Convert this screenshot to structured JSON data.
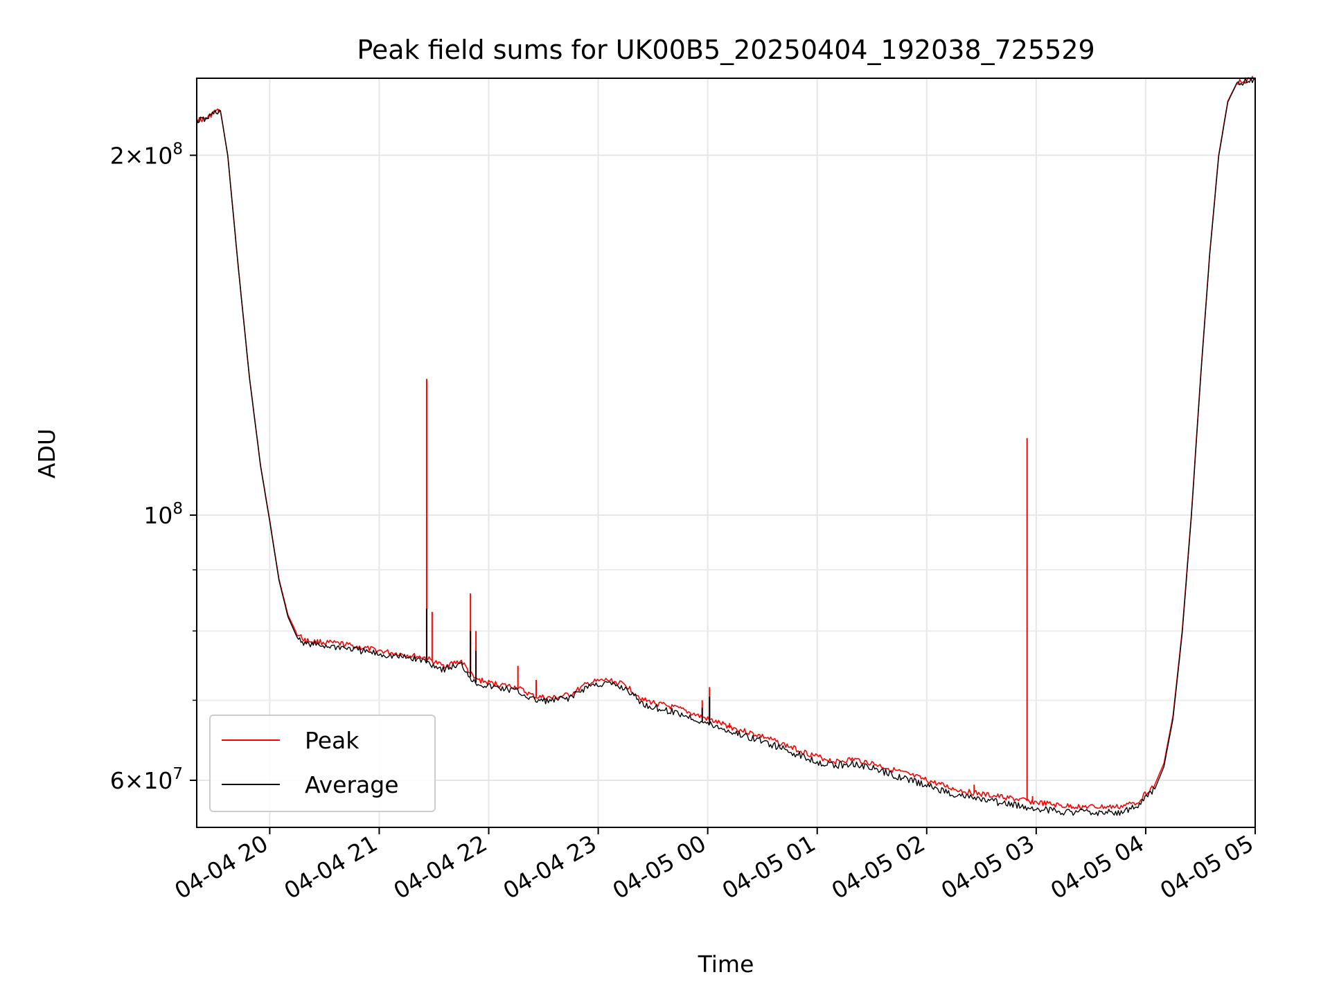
{
  "chart_data": {
    "type": "line",
    "title": "Peak field sums for UK00B5_20250404_192038_725529",
    "xlabel": "Time",
    "ylabel": "ADU",
    "x_unit": "hours",
    "xlim": [
      "2025-04-04 19:20",
      "2025-04-05 05:00"
    ],
    "ylim": [
      54800000,
      232000000
    ],
    "yscale": "log",
    "grid": true,
    "x_ticks": [
      {
        "value": "2025-04-04 20:00",
        "label": "04-04 20"
      },
      {
        "value": "2025-04-04 21:00",
        "label": "04-04 21"
      },
      {
        "value": "2025-04-04 22:00",
        "label": "04-04 22"
      },
      {
        "value": "2025-04-04 23:00",
        "label": "04-04 23"
      },
      {
        "value": "2025-04-05 00:00",
        "label": "04-05 00"
      },
      {
        "value": "2025-04-05 01:00",
        "label": "04-05 01"
      },
      {
        "value": "2025-04-05 02:00",
        "label": "04-05 02"
      },
      {
        "value": "2025-04-05 03:00",
        "label": "04-05 03"
      },
      {
        "value": "2025-04-05 04:00",
        "label": "04-05 04"
      },
      {
        "value": "2025-04-05 05:00",
        "label": "04-05 05"
      }
    ],
    "y_major_ticks": [
      {
        "value": 60000000,
        "mant": "6",
        "exp": "7"
      },
      {
        "value": 100000000,
        "mant": "",
        "exp": "8"
      },
      {
        "value": 200000000,
        "mant": "2",
        "exp": "8"
      }
    ],
    "y_minor_ticks": [
      70000000,
      80000000,
      90000000
    ],
    "legend": {
      "placement": "lower-left",
      "entries": [
        "Peak",
        "Average"
      ]
    },
    "series": [
      {
        "name": "Peak",
        "color": "#ff0000",
        "points": [
          [
            "2025-04-04 19:20",
            214000000
          ],
          [
            "2025-04-04 19:25",
            214500000
          ],
          [
            "2025-04-04 19:30",
            217500000
          ],
          [
            "2025-04-04 19:33",
            218000000
          ],
          [
            "2025-04-04 19:37",
            200000000
          ],
          [
            "2025-04-04 19:43",
            160000000
          ],
          [
            "2025-04-04 19:49",
            130000000
          ],
          [
            "2025-04-04 19:55",
            110000000
          ],
          [
            "2025-04-04 20:00",
            99000000
          ],
          [
            "2025-04-04 20:05",
            88500000
          ],
          [
            "2025-04-04 20:10",
            82500000
          ],
          [
            "2025-04-04 20:15",
            79500000
          ],
          [
            "2025-04-04 20:20",
            78500000
          ],
          [
            "2025-04-04 20:40",
            78000000
          ],
          [
            "2025-04-04 21:00",
            77000000
          ],
          [
            "2025-04-04 21:20",
            76200000
          ],
          [
            "2025-04-04 21:25",
            76000000
          ],
          [
            "2025-04-04 21:35",
            74800000
          ],
          [
            "2025-04-04 21:45",
            75500000
          ],
          [
            "2025-04-04 21:52",
            73000000
          ],
          [
            "2025-04-04 22:00",
            72400000
          ],
          [
            "2025-04-04 22:15",
            71800000
          ],
          [
            "2025-04-04 22:25",
            70500000
          ],
          [
            "2025-04-04 22:35",
            70300000
          ],
          [
            "2025-04-04 22:45",
            70800000
          ],
          [
            "2025-04-04 22:55",
            72400000
          ],
          [
            "2025-04-04 23:05",
            72800000
          ],
          [
            "2025-04-04 23:15",
            72100000
          ],
          [
            "2025-04-04 23:25",
            70000000
          ],
          [
            "2025-04-04 23:45",
            68800000
          ],
          [
            "2025-04-05 00:00",
            67500000
          ],
          [
            "2025-04-05 00:15",
            66300000
          ],
          [
            "2025-04-05 00:30",
            65300000
          ],
          [
            "2025-04-05 00:45",
            64000000
          ],
          [
            "2025-04-05 01:00",
            62800000
          ],
          [
            "2025-04-05 01:10",
            62200000
          ],
          [
            "2025-04-05 01:20",
            62500000
          ],
          [
            "2025-04-05 01:30",
            62000000
          ],
          [
            "2025-04-05 01:45",
            61000000
          ],
          [
            "2025-04-05 02:00",
            60000000
          ],
          [
            "2025-04-05 02:15",
            59000000
          ],
          [
            "2025-04-05 02:30",
            58400000
          ],
          [
            "2025-04-05 02:45",
            58000000
          ],
          [
            "2025-04-05 03:00",
            57500000
          ],
          [
            "2025-04-05 03:15",
            57100000
          ],
          [
            "2025-04-05 03:30",
            57000000
          ],
          [
            "2025-04-05 03:45",
            57000000
          ],
          [
            "2025-04-05 03:55",
            57500000
          ],
          [
            "2025-04-05 04:05",
            59500000
          ],
          [
            "2025-04-05 04:10",
            62000000
          ],
          [
            "2025-04-05 04:15",
            68000000
          ],
          [
            "2025-04-05 04:20",
            80000000
          ],
          [
            "2025-04-05 04:25",
            100000000
          ],
          [
            "2025-04-05 04:30",
            130000000
          ],
          [
            "2025-04-05 04:35",
            165000000
          ],
          [
            "2025-04-05 04:40",
            200000000
          ],
          [
            "2025-04-05 04:45",
            222000000
          ],
          [
            "2025-04-05 04:50",
            230000000
          ],
          [
            "2025-04-05 05:00",
            232000000
          ]
        ],
        "spikes": [
          [
            "2025-04-04 21:26",
            130000000
          ],
          [
            "2025-04-04 21:29",
            83000000
          ],
          [
            "2025-04-04 21:50",
            86000000
          ],
          [
            "2025-04-04 21:53",
            80000000
          ],
          [
            "2025-04-04 22:16",
            74800000
          ],
          [
            "2025-04-04 22:26",
            72800000
          ],
          [
            "2025-04-04 23:57",
            70000000
          ],
          [
            "2025-04-05 00:01",
            71800000
          ],
          [
            "2025-04-05 00:12",
            67000000
          ],
          [
            "2025-04-05 02:26",
            59500000
          ],
          [
            "2025-04-05 02:55",
            116000000
          ],
          [
            "2025-04-05 02:58",
            58200000
          ]
        ]
      },
      {
        "name": "Average",
        "color": "#000000",
        "points": [
          [
            "2025-04-04 19:20",
            213800000
          ],
          [
            "2025-04-04 19:25",
            214300000
          ],
          [
            "2025-04-04 19:30",
            217300000
          ],
          [
            "2025-04-04 19:33",
            217800000
          ],
          [
            "2025-04-04 19:37",
            199800000
          ],
          [
            "2025-04-04 19:43",
            159800000
          ],
          [
            "2025-04-04 19:49",
            129800000
          ],
          [
            "2025-04-04 19:55",
            109800000
          ],
          [
            "2025-04-04 20:00",
            98800000
          ],
          [
            "2025-04-04 20:05",
            88300000
          ],
          [
            "2025-04-04 20:10",
            82200000
          ],
          [
            "2025-04-04 20:15",
            79000000
          ],
          [
            "2025-04-04 20:20",
            78000000
          ],
          [
            "2025-04-04 20:40",
            77500000
          ],
          [
            "2025-04-04 21:00",
            76500000
          ],
          [
            "2025-04-04 21:20",
            75800000
          ],
          [
            "2025-04-04 21:25",
            75500000
          ],
          [
            "2025-04-04 21:35",
            74300000
          ],
          [
            "2025-04-04 21:45",
            75000000
          ],
          [
            "2025-04-04 21:52",
            72500000
          ],
          [
            "2025-04-04 22:00",
            71900000
          ],
          [
            "2025-04-04 22:15",
            71300000
          ],
          [
            "2025-04-04 22:25",
            70000000
          ],
          [
            "2025-04-04 22:35",
            69900000
          ],
          [
            "2025-04-04 22:45",
            70400000
          ],
          [
            "2025-04-04 22:55",
            72000000
          ],
          [
            "2025-04-04 23:05",
            72300000
          ],
          [
            "2025-04-04 23:15",
            71600000
          ],
          [
            "2025-04-04 23:25",
            69400000
          ],
          [
            "2025-04-04 23:45",
            68200000
          ],
          [
            "2025-04-05 00:00",
            66900000
          ],
          [
            "2025-04-05 00:15",
            65700000
          ],
          [
            "2025-04-05 00:30",
            64700000
          ],
          [
            "2025-04-05 00:45",
            63400000
          ],
          [
            "2025-04-05 01:00",
            62200000
          ],
          [
            "2025-04-05 01:10",
            61700000
          ],
          [
            "2025-04-05 01:20",
            62000000
          ],
          [
            "2025-04-05 01:30",
            61400000
          ],
          [
            "2025-04-05 01:45",
            60400000
          ],
          [
            "2025-04-05 02:00",
            59400000
          ],
          [
            "2025-04-05 02:15",
            58400000
          ],
          [
            "2025-04-05 02:30",
            57800000
          ],
          [
            "2025-04-05 02:45",
            57300000
          ],
          [
            "2025-04-05 03:00",
            56800000
          ],
          [
            "2025-04-05 03:15",
            56500000
          ],
          [
            "2025-04-05 03:30",
            56400000
          ],
          [
            "2025-04-05 03:45",
            56400000
          ],
          [
            "2025-04-05 03:55",
            57000000
          ],
          [
            "2025-04-05 04:05",
            59000000
          ],
          [
            "2025-04-05 04:10",
            61600000
          ],
          [
            "2025-04-05 04:15",
            67600000
          ],
          [
            "2025-04-05 04:20",
            79600000
          ],
          [
            "2025-04-05 04:25",
            99600000
          ],
          [
            "2025-04-05 04:30",
            129600000
          ],
          [
            "2025-04-05 04:35",
            164600000
          ],
          [
            "2025-04-05 04:40",
            199600000
          ],
          [
            "2025-04-05 04:45",
            221600000
          ],
          [
            "2025-04-05 04:50",
            229800000
          ],
          [
            "2025-04-05 05:00",
            231800000
          ]
        ],
        "spikes": [
          [
            "2025-04-04 21:26",
            83500000
          ],
          [
            "2025-04-04 21:50",
            80000000
          ],
          [
            "2025-04-04 21:53",
            77000000
          ],
          [
            "2025-04-04 23:57",
            69000000
          ],
          [
            "2025-04-05 00:01",
            70500000
          ]
        ]
      }
    ]
  }
}
